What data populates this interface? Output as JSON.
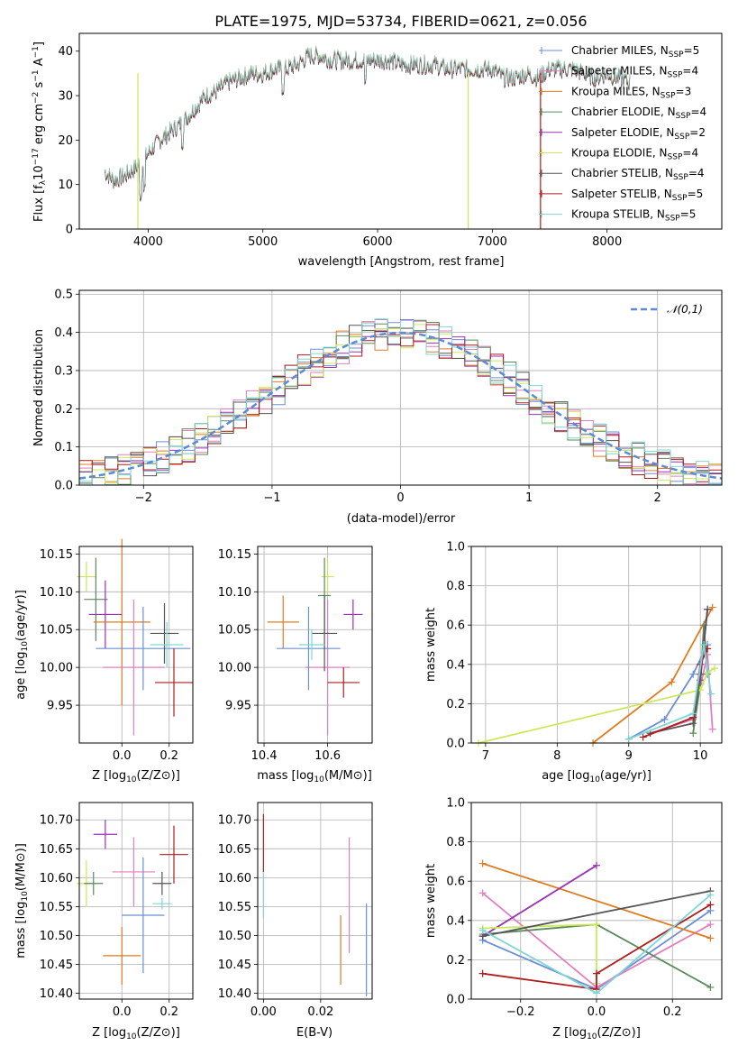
{
  "chart_data": [
    {
      "id": "spectrum",
      "type": "line",
      "title": "PLATE=1975, MJD=53734, FIBERID=0621, z=0.056",
      "xlabel": "wavelength [Angstrom, rest frame]",
      "ylabel": "Flux [f_λ10^-17 erg cm^-2 s^-1 A^-1]",
      "xlim": [
        3400,
        9000
      ],
      "ylim": [
        0,
        44
      ],
      "xticks": [
        4000,
        5000,
        6000,
        7000,
        8000
      ],
      "yticks": [
        0,
        10,
        20,
        30,
        40
      ],
      "grid": false,
      "legend_position": "upper right",
      "spectrum_envelope": {
        "x": [
          3620,
          3700,
          3800,
          3900,
          4000,
          4100,
          4200,
          4300,
          4400,
          4500,
          4600,
          4700,
          4800,
          4900,
          5000,
          5100,
          5200,
          5300,
          5400,
          5500,
          5600,
          5700,
          5800,
          5900,
          6000,
          6100,
          6200,
          6300,
          6400,
          6500,
          6600,
          6700,
          6800,
          6900,
          7000,
          7100,
          7200,
          7300,
          7400,
          7500,
          7600,
          7700,
          7800,
          7900,
          8000,
          8100,
          8200
        ],
        "y": [
          13,
          11,
          12,
          14,
          17,
          20,
          22,
          24,
          27,
          30,
          31,
          33,
          34,
          35,
          35,
          36,
          36,
          37,
          39,
          39,
          38,
          38,
          38,
          38,
          38,
          38,
          37,
          37,
          37,
          37,
          36,
          36,
          36,
          36,
          36,
          34,
          34,
          35,
          34,
          36,
          36,
          36,
          35,
          34,
          35,
          34,
          33
        ]
      },
      "series": [
        {
          "name": "Chabrier MILES, N_SSP=5",
          "label_base": "Chabrier MILES, N",
          "label_sub": "SSP",
          "label_tail": "=5",
          "color": "#6a8fd6"
        },
        {
          "name": "Salpeter MILES, N_SSP=4",
          "label_base": "Salpeter MILES, N",
          "label_sub": "SSP",
          "label_tail": "=4",
          "color": "#e37fbf"
        },
        {
          "name": "Kroupa MILES, N_SSP=3",
          "label_base": "Kroupa MILES, N",
          "label_sub": "SSP",
          "label_tail": "=3",
          "color": "#e07b22"
        },
        {
          "name": "Chabrier ELODIE, N_SSP=4",
          "label_base": "Chabrier ELODIE, N",
          "label_sub": "SSP",
          "label_tail": "=4",
          "color": "#5a8a5a"
        },
        {
          "name": "Salpeter ELODIE, N_SSP=2",
          "label_base": "Salpeter ELODIE, N",
          "label_sub": "SSP",
          "label_tail": "=2",
          "color": "#9b30b5"
        },
        {
          "name": "Kroupa ELODIE, N_SSP=4",
          "label_base": "Kroupa ELODIE, N",
          "label_sub": "SSP",
          "label_tail": "=4",
          "color": "#cbe85a"
        },
        {
          "name": "Chabrier STELIB, N_SSP=4",
          "label_base": "Chabrier STELIB, N",
          "label_sub": "SSP",
          "label_tail": "=4",
          "color": "#555555"
        },
        {
          "name": "Salpeter STELIB, N_SSP=5",
          "label_base": "Salpeter STELIB, N",
          "label_sub": "SSP",
          "label_tail": "=5",
          "color": "#b01c1c"
        },
        {
          "name": "Kroupa STELIB, N_SSP=5",
          "label_base": "Kroupa STELIB, N",
          "label_sub": "SSP",
          "label_tail": "=5",
          "color": "#7fd6d6"
        }
      ]
    },
    {
      "id": "residuals",
      "type": "histogram",
      "xlabel": "(data-model)/error",
      "ylabel": "Normed distribution",
      "xlim": [
        -2.5,
        2.5
      ],
      "ylim": [
        0,
        0.51
      ],
      "xticks": [
        -2,
        -1,
        0,
        1,
        2
      ],
      "yticks": [
        0.0,
        0.1,
        0.2,
        0.3,
        0.4,
        0.5
      ],
      "grid": true,
      "legend": "𝒩(0,1)",
      "legend_position": "upper right",
      "reference_curve": {
        "name": "N(0,1)",
        "mu": 0,
        "sigma": 1,
        "color": "#5b8ad6"
      }
    },
    {
      "id": "age_vs_Z",
      "type": "errorbar",
      "xlabel": "Z [log10(Z/Z⊙)]",
      "xlabel_base": "Z [log",
      "xlabel_sub": "10",
      "xlabel_tail": "(Z/Z⊙)]",
      "ylabel": "age [log10(age/yr)]",
      "ylabel_base": "age  [log",
      "ylabel_sub": "10",
      "ylabel_tail": "(age/yr)]",
      "xlim": [
        -0.18,
        0.3
      ],
      "ylim": [
        9.9,
        10.16
      ],
      "xticks": [
        0.0,
        0.2
      ],
      "yticks": [
        9.95,
        10.0,
        10.05,
        10.1,
        10.15
      ],
      "points": [
        {
          "x": -0.15,
          "y": 10.12,
          "xerr": 0.04,
          "yerr": 0.02,
          "color": "#cbe85a"
        },
        {
          "x": -0.11,
          "y": 10.09,
          "xerr": 0.05,
          "yerr": 0.055,
          "color": "#5a8a5a"
        },
        {
          "x": -0.07,
          "y": 10.07,
          "xerr": 0.07,
          "yerr": 0.045,
          "color": "#9b30b5"
        },
        {
          "x": 0.0,
          "y": 10.06,
          "xerr": 0.12,
          "yerr": 0.11,
          "color": "#e07b22"
        },
        {
          "x": 0.05,
          "y": 10.0,
          "xerr": 0.13,
          "yerr": 0.09,
          "color": "#e37fbf"
        },
        {
          "x": 0.09,
          "y": 10.025,
          "xerr": 0.2,
          "yerr": 0.055,
          "color": "#6a8fd6"
        },
        {
          "x": 0.18,
          "y": 10.045,
          "xerr": 0.06,
          "yerr": 0.04,
          "color": "#555555"
        },
        {
          "x": 0.19,
          "y": 10.03,
          "xerr": 0.07,
          "yerr": 0.03,
          "color": "#7fd6d6"
        },
        {
          "x": 0.22,
          "y": 9.98,
          "xerr": 0.08,
          "yerr": 0.045,
          "color": "#b01c1c"
        }
      ]
    },
    {
      "id": "age_vs_mass",
      "type": "errorbar",
      "xlabel": "mass [log10(M/M⊙)]",
      "xlabel_base": "mass [log",
      "xlabel_sub": "10",
      "xlabel_tail": "(M/M⊙)]",
      "xlim": [
        10.38,
        10.74
      ],
      "ylim": [
        9.9,
        10.16
      ],
      "xticks": [
        10.4,
        10.6
      ],
      "yticks": [
        9.95,
        10.0,
        10.05,
        10.1,
        10.15
      ],
      "points": [
        {
          "x": 10.6,
          "y": 10.12,
          "xerr": 0.02,
          "yerr": 0.025,
          "color": "#cbe85a"
        },
        {
          "x": 10.59,
          "y": 10.095,
          "xerr": 0.02,
          "yerr": 0.05,
          "color": "#5a8a5a"
        },
        {
          "x": 10.68,
          "y": 10.07,
          "xerr": 0.03,
          "yerr": 0.02,
          "color": "#9b30b5"
        },
        {
          "x": 10.46,
          "y": 10.06,
          "xerr": 0.05,
          "yerr": 0.035,
          "color": "#e07b22"
        },
        {
          "x": 10.6,
          "y": 10.0,
          "xerr": 0.07,
          "yerr": 0.09,
          "color": "#e37fbf"
        },
        {
          "x": 10.54,
          "y": 10.025,
          "xerr": 0.1,
          "yerr": 0.055,
          "color": "#6a8fd6"
        },
        {
          "x": 10.59,
          "y": 10.045,
          "xerr": 0.04,
          "yerr": 0.05,
          "color": "#555555"
        },
        {
          "x": 10.55,
          "y": 10.03,
          "xerr": 0.04,
          "yerr": 0.02,
          "color": "#7fd6d6"
        },
        {
          "x": 10.65,
          "y": 9.98,
          "xerr": 0.05,
          "yerr": 0.02,
          "color": "#b01c1c"
        }
      ]
    },
    {
      "id": "weight_vs_age",
      "type": "line",
      "xlabel": "age [log10(age/yr)]",
      "xlabel_base": "age  [log",
      "xlabel_sub": "10",
      "xlabel_tail": "(age/yr)]",
      "ylabel": "mass weight",
      "xlim": [
        6.8,
        10.3
      ],
      "ylim": [
        0,
        1.0
      ],
      "xticks": [
        7,
        8,
        9,
        10
      ],
      "yticks": [
        0.0,
        0.2,
        0.4,
        0.6,
        0.8,
        1.0
      ],
      "grid": true,
      "series": [
        {
          "name": "Chabrier MILES",
          "color": "#6a8fd6",
          "x": [
            9.0,
            9.5,
            9.9,
            10.1
          ],
          "y": [
            0.02,
            0.12,
            0.35,
            0.5
          ]
        },
        {
          "name": "Salpeter MILES",
          "color": "#e37fbf",
          "x": [
            9.3,
            9.9,
            10.1,
            10.17
          ],
          "y": [
            0.05,
            0.12,
            0.45,
            0.07
          ]
        },
        {
          "name": "Kroupa MILES",
          "color": "#e07b22",
          "x": [
            8.5,
            9.6,
            10.17
          ],
          "y": [
            0.0,
            0.31,
            0.69
          ]
        },
        {
          "name": "Chabrier ELODIE",
          "color": "#5a8a5a",
          "x": [
            9.9,
            10.0,
            10.05,
            10.1
          ],
          "y": [
            0.05,
            0.3,
            0.6,
            0.35
          ]
        },
        {
          "name": "Salpeter ELODIE",
          "color": "#9b30b5",
          "x": [
            10.0,
            10.1
          ],
          "y": [
            0.32,
            0.68
          ]
        },
        {
          "name": "Kroupa ELODIE",
          "color": "#cbe85a",
          "x": [
            6.9,
            10.0,
            10.1,
            10.2
          ],
          "y": [
            0.0,
            0.27,
            0.36,
            0.38
          ]
        },
        {
          "name": "Chabrier STELIB",
          "color": "#555555",
          "x": [
            9.3,
            9.9,
            10.0,
            10.1
          ],
          "y": [
            0.05,
            0.1,
            0.35,
            0.68
          ]
        },
        {
          "name": "Salpeter STELIB",
          "color": "#b01c1c",
          "x": [
            9.2,
            9.9,
            10.0,
            10.1
          ],
          "y": [
            0.03,
            0.13,
            0.4,
            0.48
          ]
        },
        {
          "name": "Kroupa STELIB",
          "color": "#7fd6d6",
          "x": [
            9.0,
            9.9,
            10.05,
            10.15
          ],
          "y": [
            0.02,
            0.15,
            0.5,
            0.25
          ]
        }
      ]
    },
    {
      "id": "mass_vs_Z",
      "type": "errorbar",
      "xlabel": "Z [log10(Z/Z⊙)]",
      "xlabel_base": "Z [log",
      "xlabel_sub": "10",
      "xlabel_tail": "(Z/Z⊙)]",
      "ylabel": "mass [log10(M/M⊙)]",
      "ylabel_base": "mass [log",
      "ylabel_sub": "10",
      "ylabel_tail": "(M/M⊙)]",
      "xlim": [
        -0.18,
        0.3
      ],
      "ylim": [
        10.39,
        10.73
      ],
      "xticks": [
        0.0,
        0.2
      ],
      "yticks": [
        10.4,
        10.45,
        10.5,
        10.55,
        10.6,
        10.65,
        10.7
      ],
      "points": [
        {
          "x": -0.15,
          "y": 10.59,
          "xerr": 0.04,
          "yerr": 0.04,
          "color": "#cbe85a"
        },
        {
          "x": -0.12,
          "y": 10.59,
          "xerr": 0.04,
          "yerr": 0.02,
          "color": "#5a8a5a"
        },
        {
          "x": -0.07,
          "y": 10.675,
          "xerr": 0.05,
          "yerr": 0.025,
          "color": "#9b30b5"
        },
        {
          "x": 0.0,
          "y": 10.465,
          "xerr": 0.08,
          "yerr": 0.05,
          "color": "#e07b22"
        },
        {
          "x": 0.05,
          "y": 10.61,
          "xerr": 0.09,
          "yerr": 0.06,
          "color": "#e37fbf"
        },
        {
          "x": 0.09,
          "y": 10.535,
          "xerr": 0.09,
          "yerr": 0.1,
          "color": "#6a8fd6"
        },
        {
          "x": 0.17,
          "y": 10.59,
          "xerr": 0.04,
          "yerr": 0.02,
          "color": "#555555"
        },
        {
          "x": 0.17,
          "y": 10.555,
          "xerr": 0.04,
          "yerr": 0.01,
          "color": "#7fd6d6"
        },
        {
          "x": 0.22,
          "y": 10.64,
          "xerr": 0.06,
          "yerr": 0.05,
          "color": "#b01c1c"
        }
      ]
    },
    {
      "id": "mass_vs_EBV",
      "type": "errorbar",
      "xlabel": "E(B-V)",
      "xlim": [
        -0.002,
        0.038
      ],
      "ylim": [
        10.39,
        10.73
      ],
      "xticks": [
        0.0,
        0.02
      ],
      "yticks": [
        10.4,
        10.45,
        10.5,
        10.55,
        10.6,
        10.65,
        10.7
      ],
      "points": [
        {
          "x": 0.0,
          "y": 10.66,
          "xerr": 0.0,
          "yerr": 0.05,
          "color": "#b01c1c"
        },
        {
          "x": 0.0,
          "y": 10.57,
          "xerr": 0.0,
          "yerr": 0.04,
          "color": "#7fd6d6"
        },
        {
          "x": 0.027,
          "y": 10.475,
          "xerr": 0.0,
          "yerr": 0.06,
          "color": "#e07b22"
        },
        {
          "x": 0.03,
          "y": 10.57,
          "xerr": 0.0,
          "yerr": 0.1,
          "color": "#e37fbf"
        },
        {
          "x": 0.036,
          "y": 10.475,
          "xerr": 0.0,
          "yerr": 0.08,
          "color": "#6a8fd6"
        }
      ]
    },
    {
      "id": "weight_vs_Z",
      "type": "line",
      "xlabel": "Z [log10(Z/Z⊙)]",
      "xlabel_base": "Z [log",
      "xlabel_sub": "10",
      "xlabel_tail": "(Z/Z⊙)]",
      "ylabel": "mass weight",
      "xlim": [
        -0.33,
        0.33
      ],
      "ylim": [
        0,
        1.0
      ],
      "xticks": [
        -0.2,
        0.0,
        0.2
      ],
      "yticks": [
        0.0,
        0.2,
        0.4,
        0.6,
        0.8,
        1.0
      ],
      "grid": true,
      "series": [
        {
          "name": "Chabrier MILES",
          "color": "#6a8fd6",
          "x": [
            -0.3,
            0.0,
            0.3
          ],
          "y": [
            0.3,
            0.05,
            0.45
          ]
        },
        {
          "name": "Salpeter MILES",
          "color": "#e37fbf",
          "x": [
            -0.3,
            0.0,
            0.3
          ],
          "y": [
            0.54,
            0.06,
            0.38
          ]
        },
        {
          "name": "Kroupa MILES",
          "color": "#e07b22",
          "x": [
            -0.3,
            0.3
          ],
          "y": [
            0.69,
            0.31
          ]
        },
        {
          "name": "Chabrier ELODIE",
          "color": "#5a8a5a",
          "x": [
            -0.3,
            0.0,
            0.3
          ],
          "y": [
            0.33,
            0.38,
            0.06
          ]
        },
        {
          "name": "Salpeter ELODIE",
          "color": "#9b30b5",
          "x": [
            -0.3,
            0.0
          ],
          "y": [
            0.32,
            0.68
          ]
        },
        {
          "name": "Kroupa ELODIE",
          "color": "#cbe85a",
          "x": [
            -0.3,
            0.0,
            0.0
          ],
          "y": [
            0.36,
            0.38,
            0.08
          ]
        },
        {
          "name": "Chabrier STELIB",
          "color": "#555555",
          "x": [
            -0.3,
            0.3
          ],
          "y": [
            0.32,
            0.55
          ]
        },
        {
          "name": "Salpeter STELIB",
          "color": "#b01c1c",
          "x": [
            -0.3,
            0.0,
            0.0,
            0.3
          ],
          "y": [
            0.13,
            0.05,
            0.13,
            0.48
          ]
        },
        {
          "name": "Kroupa STELIB",
          "color": "#7fd6d6",
          "x": [
            -0.3,
            0.0,
            0.3
          ],
          "y": [
            0.35,
            0.03,
            0.53
          ]
        }
      ]
    }
  ]
}
